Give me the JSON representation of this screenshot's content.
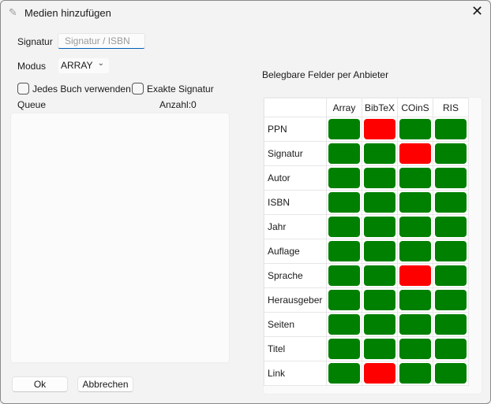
{
  "window": {
    "title": "Medien hinzufügen",
    "icon": "pencil-icon",
    "close": "✕"
  },
  "form": {
    "signatur_label": "Signatur",
    "signatur_placeholder": "Signatur / ISBN",
    "signatur_value": "",
    "modus_label": "Modus",
    "modus_value": "ARRAY",
    "checkbox_jedes": "Jedes Buch verwenden",
    "checkbox_jedes_checked": false,
    "checkbox_exakt": "Exakte Signatur",
    "checkbox_exakt_checked": false,
    "queue_label": "Queue",
    "count_label": "Anzahl:0"
  },
  "buttons": {
    "ok": "Ok",
    "cancel": "Abbrechen"
  },
  "fields": {
    "title": "Belegbare Felder per Anbieter",
    "colors": {
      "available": "#008000",
      "unavailable": "#ff0000"
    },
    "columns": [
      "Array",
      "BibTeX",
      "COinS",
      "RIS"
    ],
    "rows": [
      {
        "label": "PPN",
        "values": [
          true,
          false,
          true,
          true
        ]
      },
      {
        "label": "Signatur",
        "values": [
          true,
          true,
          false,
          true
        ]
      },
      {
        "label": "Autor",
        "values": [
          true,
          true,
          true,
          true
        ]
      },
      {
        "label": "ISBN",
        "values": [
          true,
          true,
          true,
          true
        ]
      },
      {
        "label": "Jahr",
        "values": [
          true,
          true,
          true,
          true
        ]
      },
      {
        "label": "Auflage",
        "values": [
          true,
          true,
          true,
          true
        ]
      },
      {
        "label": "Sprache",
        "values": [
          true,
          true,
          false,
          true
        ]
      },
      {
        "label": "Herausgeber",
        "values": [
          true,
          true,
          true,
          true
        ]
      },
      {
        "label": "Seiten",
        "values": [
          true,
          true,
          true,
          true
        ]
      },
      {
        "label": "Titel",
        "values": [
          true,
          true,
          true,
          true
        ]
      },
      {
        "label": "Link",
        "values": [
          true,
          false,
          true,
          true
        ]
      }
    ]
  }
}
